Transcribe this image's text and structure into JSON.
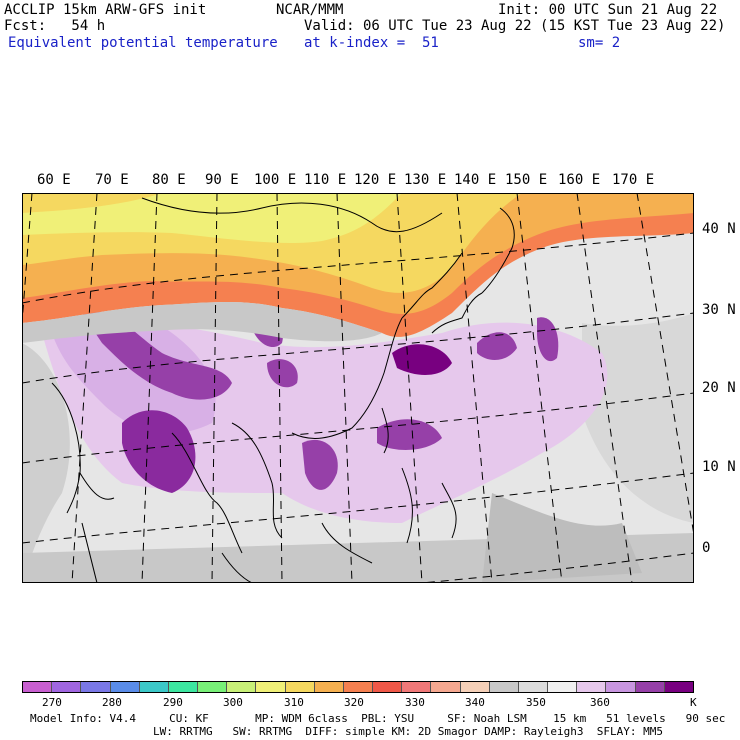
{
  "header": {
    "model_line": "ACCLIP 15km ARW-GFS init",
    "center_line": "NCAR/MMM",
    "init_line": "Init: 00 UTC Sun 21 Aug 22",
    "fcst_line": "Fcst:   54 h",
    "valid_line": "Valid: 06 UTC Tue 23 Aug 22 (15 KST Tue 23 Aug 22)",
    "field_line": "Equivalent potential temperature",
    "level_line": "at k-index =  51",
    "smooth_line": "sm= 2"
  },
  "map": {
    "lon_labels": [
      "60 E",
      "70 E",
      "80 E",
      "90 E",
      "100 E",
      "110 E",
      "120 E",
      "130 E",
      "140 E",
      "150 E",
      "160 E",
      "170 E"
    ],
    "lat_labels": [
      "40 N",
      "30 N",
      "20 N",
      "10 N",
      "0"
    ]
  },
  "colorbar": {
    "unit": "K",
    "labels": [
      "270",
      "280",
      "290",
      "300",
      "310",
      "320",
      "330",
      "340",
      "350",
      "360"
    ],
    "colors": [
      "#c85fd0",
      "#a066e0",
      "#7a78e6",
      "#5a8ce8",
      "#3cc8c8",
      "#3ce6a0",
      "#78f078",
      "#c8f078",
      "#f0f078",
      "#f5d860",
      "#f5b050",
      "#f58050",
      "#f05848",
      "#f07878",
      "#f5a890",
      "#f5d0b8",
      "#c8c8c8",
      "#dcdcdc",
      "#f0f0f0",
      "#e6c8ec",
      "#c896e0",
      "#9640a8",
      "#780080"
    ]
  },
  "footer": {
    "line1": "Model Info: V4.4     CU: KF       MP: WDM 6class  PBL: YSU     SF: Noah LSM    15 km   51 levels   90 sec",
    "line2": "LW: RRTMG   SW: RRTMG  DIFF: simple KM: 2D Smagor DAMP: Rayleigh3  SFLAY: MM5"
  }
}
